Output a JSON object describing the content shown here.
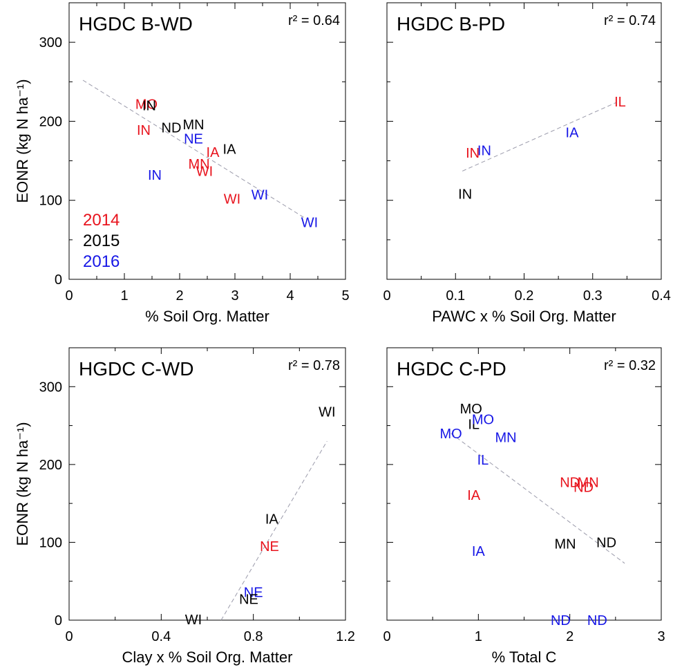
{
  "colors": {
    "2014": "#e8131d",
    "2015": "#000000",
    "2016": "#1616e6",
    "trend": "#9a9aaa"
  },
  "chart_data": [
    {
      "type": "scatter",
      "title": "HGDC B-WD",
      "r2_text": "r² = 0.64",
      "xlabel": "% Soil Org. Matter",
      "ylabel": "EONR (kg N ha⁻¹)",
      "xlim": [
        0,
        5
      ],
      "ylim": [
        0,
        350
      ],
      "xticks": [
        0,
        1,
        2,
        3,
        4,
        5
      ],
      "xtick_labels": [
        "0",
        "1",
        "2",
        "3",
        "4",
        "5"
      ],
      "yticks": [
        0,
        100,
        200,
        300
      ],
      "ytick_labels": [
        "0",
        "100",
        "200",
        "300"
      ],
      "grid": false,
      "legend": {
        "placement": "bottom-left",
        "entries": [
          {
            "label": "2014",
            "color": "#e8131d"
          },
          {
            "label": "2015",
            "color": "#000000"
          },
          {
            "label": "2016",
            "color": "#1616e6"
          }
        ]
      },
      "trend": {
        "x": [
          0.25,
          4.3
        ],
        "y": [
          252,
          76
        ]
      },
      "points": [
        {
          "label": "MO",
          "x": 1.4,
          "y": 222,
          "year": "2014"
        },
        {
          "label": "IN",
          "x": 1.45,
          "y": 220,
          "year": "2015"
        },
        {
          "label": "IN",
          "x": 1.35,
          "y": 189,
          "year": "2014"
        },
        {
          "label": "ND",
          "x": 1.85,
          "y": 192,
          "year": "2015"
        },
        {
          "label": "MN",
          "x": 2.25,
          "y": 196,
          "year": "2015"
        },
        {
          "label": "NE",
          "x": 2.25,
          "y": 178,
          "year": "2016"
        },
        {
          "label": "IA",
          "x": 2.6,
          "y": 161,
          "year": "2014"
        },
        {
          "label": "IA",
          "x": 2.9,
          "y": 165,
          "year": "2015"
        },
        {
          "label": "MN",
          "x": 2.35,
          "y": 146,
          "year": "2014"
        },
        {
          "label": "WI",
          "x": 2.45,
          "y": 137,
          "year": "2014"
        },
        {
          "label": "IN",
          "x": 1.55,
          "y": 132,
          "year": "2016"
        },
        {
          "label": "WI",
          "x": 2.95,
          "y": 102,
          "year": "2014"
        },
        {
          "label": "WI",
          "x": 3.45,
          "y": 107,
          "year": "2016"
        },
        {
          "label": "WI",
          "x": 4.35,
          "y": 72,
          "year": "2016"
        }
      ]
    },
    {
      "type": "scatter",
      "title": "HGDC B-PD",
      "r2_text": "r² = 0.74",
      "xlabel": "PAWC x % Soil Org. Matter",
      "ylabel": "",
      "xlim": [
        0,
        0.4
      ],
      "ylim": [
        0,
        350
      ],
      "xticks": [
        0,
        0.1,
        0.2,
        0.3,
        0.4
      ],
      "xtick_labels": [
        "0",
        "0.1",
        "0.2",
        "0.3",
        "0.4"
      ],
      "yticks": [
        0,
        100,
        200,
        300
      ],
      "ytick_labels": [],
      "grid": false,
      "trend": {
        "x": [
          0.11,
          0.335
        ],
        "y": [
          137,
          224
        ]
      },
      "points": [
        {
          "label": "IL",
          "x": 0.34,
          "y": 225,
          "year": "2014"
        },
        {
          "label": "IA",
          "x": 0.27,
          "y": 186,
          "year": "2016"
        },
        {
          "label": "IN",
          "x": 0.125,
          "y": 160,
          "year": "2014"
        },
        {
          "label": "IN",
          "x": 0.142,
          "y": 163,
          "year": "2016"
        },
        {
          "label": "IN",
          "x": 0.114,
          "y": 108,
          "year": "2015"
        }
      ]
    },
    {
      "type": "scatter",
      "title": "HGDC C-WD",
      "r2_text": "r² = 0.78",
      "xlabel": "Clay x % Soil Org. Matter",
      "ylabel": "EONR (kg N ha⁻¹)",
      "xlim": [
        0,
        1.2
      ],
      "ylim": [
        0,
        350
      ],
      "xticks": [
        0,
        0.4,
        0.8,
        1.2
      ],
      "xtick_labels": [
        "0",
        "0.4",
        "0.8",
        "1.2"
      ],
      "yticks": [
        0,
        100,
        200,
        300
      ],
      "ytick_labels": [
        "0",
        "100",
        "200",
        "300"
      ],
      "grid": false,
      "trend": {
        "x": [
          0.66,
          1.12
        ],
        "y": [
          0,
          230
        ]
      },
      "points": [
        {
          "label": "WI",
          "x": 1.12,
          "y": 268,
          "year": "2015"
        },
        {
          "label": "IA",
          "x": 0.88,
          "y": 130,
          "year": "2015"
        },
        {
          "label": "NE",
          "x": 0.87,
          "y": 95,
          "year": "2014"
        },
        {
          "label": "NE",
          "x": 0.8,
          "y": 36,
          "year": "2016"
        },
        {
          "label": "NE",
          "x": 0.78,
          "y": 27,
          "year": "2015"
        },
        {
          "label": "WI",
          "x": 0.54,
          "y": 1,
          "year": "2015"
        }
      ]
    },
    {
      "type": "scatter",
      "title": "HGDC C-PD",
      "r2_text": "r² = 0.32",
      "xlabel": "% Total C",
      "ylabel": "",
      "xlim": [
        0,
        3
      ],
      "ylim": [
        0,
        350
      ],
      "xticks": [
        0,
        1,
        2,
        3
      ],
      "xtick_labels": [
        "0",
        "1",
        "2",
        "3"
      ],
      "yticks": [
        0,
        100,
        200,
        300
      ],
      "ytick_labels": [],
      "grid": false,
      "trend": {
        "x": [
          0.7,
          2.6
        ],
        "y": [
          240,
          73
        ]
      },
      "points": [
        {
          "label": "MO",
          "x": 0.92,
          "y": 272,
          "year": "2015"
        },
        {
          "label": "IL",
          "x": 0.95,
          "y": 252,
          "year": "2015"
        },
        {
          "label": "MO",
          "x": 1.05,
          "y": 258,
          "year": "2016"
        },
        {
          "label": "MO",
          "x": 0.7,
          "y": 240,
          "year": "2016"
        },
        {
          "label": "MN",
          "x": 1.3,
          "y": 235,
          "year": "2016"
        },
        {
          "label": "IL",
          "x": 1.05,
          "y": 206,
          "year": "2016"
        },
        {
          "label": "ND",
          "x": 2.0,
          "y": 177,
          "year": "2014"
        },
        {
          "label": "MN",
          "x": 2.2,
          "y": 177,
          "year": "2014"
        },
        {
          "label": "ND",
          "x": 2.15,
          "y": 171,
          "year": "2014"
        },
        {
          "label": "IA",
          "x": 0.95,
          "y": 161,
          "year": "2014"
        },
        {
          "label": "MN",
          "x": 1.95,
          "y": 98,
          "year": "2015"
        },
        {
          "label": "ND",
          "x": 2.4,
          "y": 100,
          "year": "2015"
        },
        {
          "label": "IA",
          "x": 1.0,
          "y": 89,
          "year": "2016"
        },
        {
          "label": "ND",
          "x": 1.9,
          "y": 0,
          "year": "2016"
        },
        {
          "label": "ND",
          "x": 2.3,
          "y": 0,
          "year": "2016"
        }
      ]
    }
  ]
}
